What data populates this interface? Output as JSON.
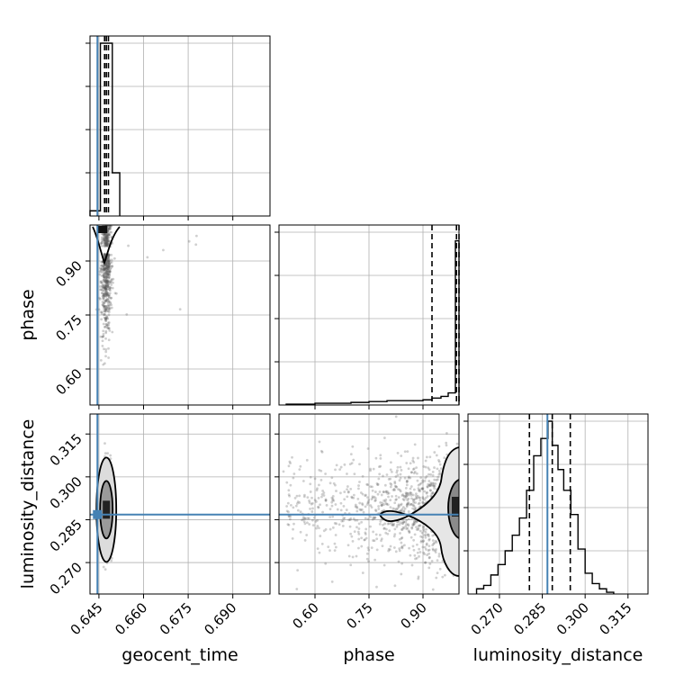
{
  "colors": {
    "truth": "#4682b4",
    "scatter": "#555555",
    "contour": "#000000",
    "grid": "#b0b0b0"
  },
  "chart_data": {
    "type": "corner",
    "parameters": [
      "geocent_time",
      "phase",
      "luminosity_distance"
    ],
    "axis_labels": {
      "x": [
        "geocent_time",
        "phase",
        "luminosity_distance"
      ],
      "y": [
        "",
        "phase",
        "luminosity_distance"
      ]
    },
    "ranges": {
      "geocent_time": [
        0.642,
        0.7025
      ],
      "phase": [
        0.5,
        1.0
      ],
      "luminosity_distance": [
        0.259,
        0.322
      ]
    },
    "ticks": {
      "geocent_time": [
        "0.645",
        "0.660",
        "0.675",
        "0.690"
      ],
      "phase": [
        "0.60",
        "0.75",
        "0.90"
      ],
      "luminosity_distance": [
        "0.270",
        "0.285",
        "0.300",
        "0.315"
      ]
    },
    "tick_values": {
      "geocent_time": [
        0.645,
        0.66,
        0.675,
        0.69
      ],
      "phase": [
        0.6,
        0.75,
        0.9
      ],
      "luminosity_distance": [
        0.27,
        0.285,
        0.3,
        0.315
      ]
    },
    "truths": {
      "geocent_time": 0.6445,
      "phase": null,
      "luminosity_distance": 0.2868
    },
    "quantiles": {
      "geocent_time": [
        0.6469,
        0.6475,
        0.6482
      ],
      "phase": [
        0.925,
        0.993,
        1.0
      ],
      "luminosity_distance": [
        0.2805,
        0.2885,
        0.2948
      ]
    },
    "histograms": {
      "geocent_time": {
        "edges": [
          0.642,
          0.6455,
          0.6495,
          0.652
        ],
        "counts": [
          0.03,
          1.0,
          0.25
        ]
      },
      "phase": {
        "edges": [
          0.52,
          0.6,
          0.7,
          0.75,
          0.8,
          0.85,
          0.9,
          0.925,
          0.95,
          0.97,
          0.99,
          0.998,
          1.0
        ],
        "counts": [
          0.005,
          0.01,
          0.015,
          0.02,
          0.025,
          0.025,
          0.03,
          0.04,
          0.05,
          0.07,
          0.95,
          0.95
        ]
      },
      "luminosity_distance": {
        "edges": [
          0.262,
          0.2645,
          0.267,
          0.2695,
          0.272,
          0.2745,
          0.277,
          0.2795,
          0.282,
          0.2845,
          0.287,
          0.2885,
          0.2905,
          0.2925,
          0.295,
          0.2975,
          0.3,
          0.3025,
          0.305,
          0.3075,
          0.31
        ],
        "counts": [
          0.03,
          0.05,
          0.11,
          0.17,
          0.25,
          0.34,
          0.44,
          0.6,
          0.8,
          0.9,
          1.0,
          0.86,
          0.72,
          0.6,
          0.46,
          0.26,
          0.12,
          0.06,
          0.03,
          0.01
        ]
      }
    },
    "grid": true
  }
}
